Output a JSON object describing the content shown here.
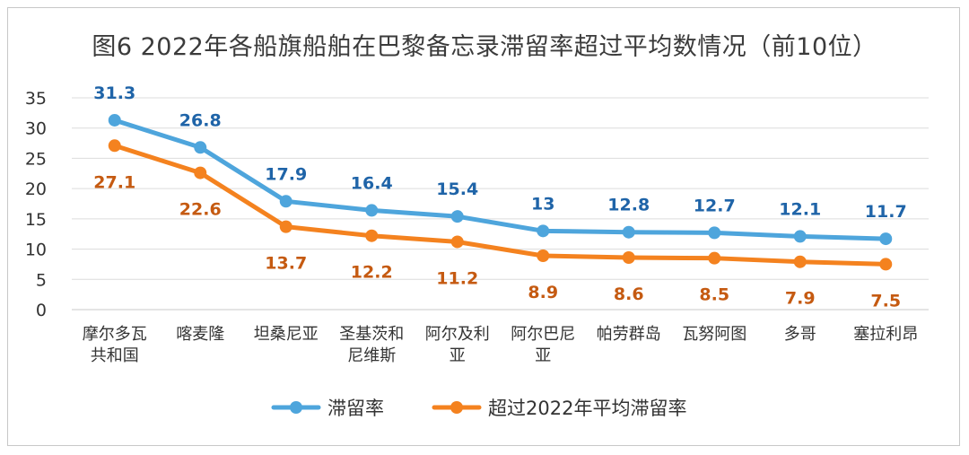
{
  "chart_data": {
    "type": "line",
    "title": "图6  2022年各船旗船舶在巴黎备忘录滞留率超过平均数情况（前10位）",
    "categories": [
      [
        "摩尔多瓦",
        "共和国"
      ],
      [
        "喀麦隆"
      ],
      [
        "坦桑尼亚"
      ],
      [
        "圣基茨和",
        "尼维斯"
      ],
      [
        "阿尔及利",
        "亚"
      ],
      [
        "阿尔巴尼",
        "亚"
      ],
      [
        "帕劳群岛"
      ],
      [
        "瓦努阿图"
      ],
      [
        "多哥"
      ],
      [
        "塞拉利昂"
      ]
    ],
    "series": [
      {
        "name": "滞留率",
        "color": "#4ea5dc",
        "label_color": "#1f64a8",
        "values": [
          31.3,
          26.8,
          17.9,
          16.4,
          15.4,
          13,
          12.8,
          12.7,
          12.1,
          11.7
        ],
        "labels": [
          "31.3",
          "26.8",
          "17.9",
          "16.4",
          "15.4",
          "13",
          "12.8",
          "12.7",
          "12.1",
          "11.7"
        ],
        "label_position": "above"
      },
      {
        "name": "超过2022年平均滞留率",
        "color": "#f4821f",
        "label_color": "#c55a11",
        "values": [
          27.1,
          22.6,
          13.7,
          12.2,
          11.2,
          8.9,
          8.6,
          8.5,
          7.9,
          7.5
        ],
        "labels": [
          "27.1",
          "22.6",
          "13.7",
          "12.2",
          "11.2",
          "8.9",
          "8.6",
          "8.5",
          "7.9",
          "7.5"
        ],
        "label_position": "below"
      }
    ],
    "ylim": [
      0,
      35
    ],
    "yticks": [
      "0",
      "5",
      "10",
      "15",
      "20",
      "25",
      "30",
      "35"
    ],
    "grid": true,
    "legend": "bottom"
  }
}
